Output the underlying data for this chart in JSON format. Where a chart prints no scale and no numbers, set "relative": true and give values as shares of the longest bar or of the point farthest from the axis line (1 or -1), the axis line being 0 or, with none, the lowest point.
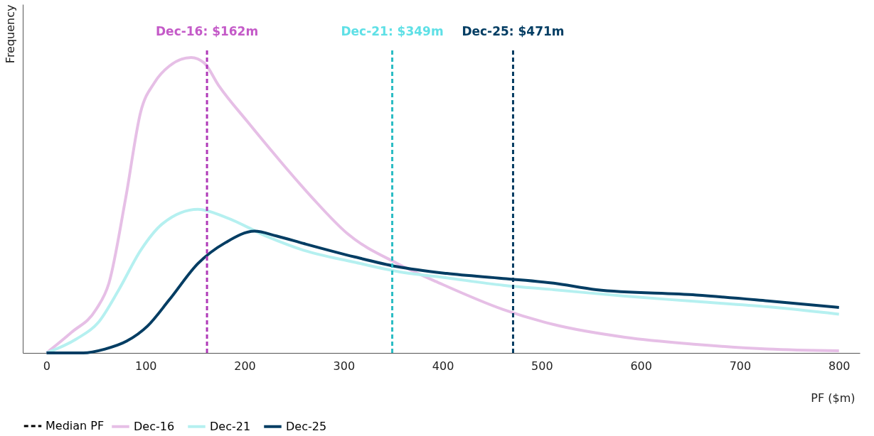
{
  "chart_data": {
    "type": "line",
    "relative": true,
    "xlabel": "PF ($m)",
    "ylabel": "Frequency",
    "xlim": [
      -24,
      821
    ],
    "xticks": [
      0,
      100,
      200,
      300,
      400,
      500,
      600,
      700,
      800
    ],
    "grid": false,
    "legend": "bottom",
    "line_style": "solid",
    "marker": "none",
    "series": [
      {
        "name": "Dec-16",
        "color": "#e6bfe6",
        "x": [
          0,
          25,
          50,
          63,
          80,
          95,
          109,
          124,
          146,
          159,
          174,
          203,
          239,
          268,
          304,
          354,
          397,
          461,
          512,
          584,
          656,
          728,
          800
        ],
        "values": [
          0,
          0.069,
          0.147,
          0.236,
          0.526,
          0.815,
          0.915,
          0.971,
          1,
          0.982,
          0.904,
          0.782,
          0.637,
          0.526,
          0.403,
          0.303,
          0.236,
          0.147,
          0.096,
          0.053,
          0.029,
          0.013,
          0.007
        ]
      },
      {
        "name": "Dec-21",
        "color": "#b5f0f0",
        "x": [
          0,
          30,
          52,
          73,
          95,
          117,
          153,
          181,
          224,
          260,
          311,
          354,
          404,
          461,
          512,
          584,
          656,
          728,
          800
        ],
        "values": [
          0,
          0.047,
          0.102,
          0.214,
          0.347,
          0.437,
          0.486,
          0.459,
          0.392,
          0.347,
          0.307,
          0.276,
          0.254,
          0.229,
          0.214,
          0.192,
          0.174,
          0.156,
          0.131
        ]
      },
      {
        "name": "Dec-25",
        "color": "#033d63",
        "x": [
          0,
          37,
          59,
          81,
          102,
          124,
          153,
          181,
          210,
          232,
          260,
          311,
          354,
          404,
          461,
          512,
          555,
          656,
          728,
          800
        ],
        "values": [
          0,
          0,
          0.013,
          0.04,
          0.091,
          0.18,
          0.303,
          0.374,
          0.412,
          0.396,
          0.37,
          0.325,
          0.292,
          0.269,
          0.252,
          0.236,
          0.214,
          0.196,
          0.176,
          0.154
        ]
      }
    ],
    "ref_lines": [
      {
        "axis": "x",
        "value": 162,
        "label": "Dec-16: $162m",
        "color": "#b03ab8",
        "line_style": "dashed"
      },
      {
        "axis": "x",
        "value": 349,
        "label": "Dec-21: $349m",
        "color": "#2bbcc4",
        "line_style": "dashed"
      },
      {
        "axis": "x",
        "value": 471,
        "label": "Dec-25: $471m",
        "color": "#033d63",
        "line_style": "dashed"
      }
    ],
    "annotations": [
      "Median PF"
    ]
  }
}
